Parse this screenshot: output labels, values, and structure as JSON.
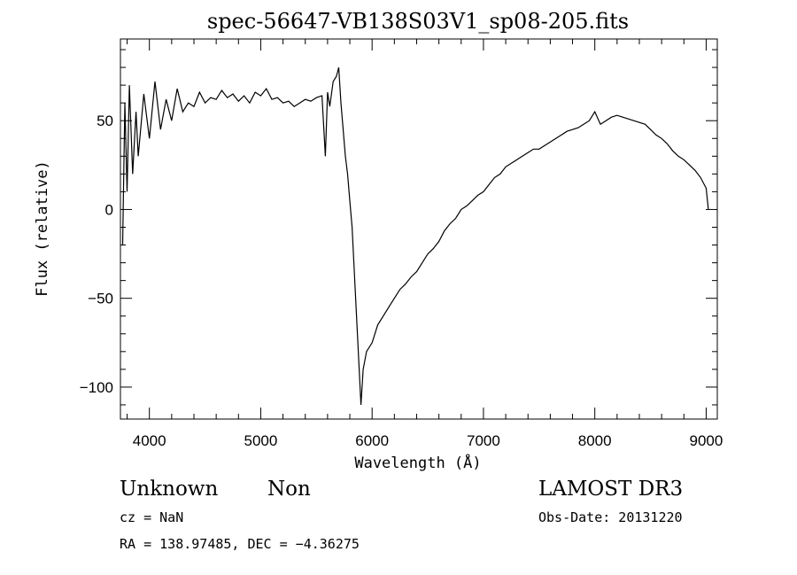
{
  "chart_data": {
    "type": "line",
    "title": "spec-56647-VB138S03V1_sp08-205.fits",
    "xlabel": "Wavelength (Å)",
    "ylabel": "Flux (relative)",
    "xlim": [
      3740,
      9100
    ],
    "ylim": [
      -118,
      96
    ],
    "x_ticks": [
      4000,
      5000,
      6000,
      7000,
      8000,
      9000
    ],
    "y_ticks": [
      -100,
      -50,
      0,
      50
    ],
    "grid": false,
    "series": [
      {
        "x": [
          3760,
          3780,
          3800,
          3820,
          3850,
          3880,
          3900,
          3950,
          4000,
          4050,
          4100,
          4150,
          4200,
          4250,
          4300,
          4350,
          4400,
          4450,
          4500,
          4550,
          4600,
          4650,
          4700,
          4750,
          4800,
          4850,
          4900,
          4950,
          5000,
          5050,
          5100,
          5150,
          5200,
          5250,
          5300,
          5350,
          5400,
          5450,
          5500,
          5550,
          5580,
          5600,
          5620,
          5650,
          5680,
          5700,
          5720,
          5740,
          5760,
          5780,
          5800,
          5820,
          5840,
          5860,
          5880,
          5900,
          5920,
          5950,
          6000,
          6050,
          6100,
          6150,
          6200,
          6250,
          6300,
          6350,
          6400,
          6450,
          6500,
          6550,
          6600,
          6650,
          6700,
          6750,
          6800,
          6850,
          6900,
          6950,
          7000,
          7050,
          7100,
          7150,
          7200,
          7250,
          7300,
          7350,
          7400,
          7450,
          7500,
          7550,
          7600,
          7650,
          7700,
          7750,
          7800,
          7850,
          7900,
          7950,
          8000,
          8050,
          8100,
          8150,
          8200,
          8250,
          8300,
          8350,
          8400,
          8450,
          8500,
          8550,
          8600,
          8650,
          8700,
          8750,
          8800,
          8850,
          8900,
          8950,
          9000,
          9020
        ],
        "y": [
          -20,
          60,
          10,
          70,
          20,
          55,
          30,
          65,
          40,
          72,
          45,
          62,
          50,
          68,
          55,
          60,
          58,
          66,
          60,
          63,
          62,
          67,
          63,
          65,
          61,
          64,
          60,
          66,
          64,
          68,
          62,
          63,
          60,
          61,
          58,
          60,
          62,
          61,
          63,
          64,
          30,
          66,
          58,
          72,
          75,
          80,
          60,
          45,
          30,
          20,
          5,
          -10,
          -35,
          -60,
          -85,
          -110,
          -90,
          -80,
          -75,
          -65,
          -60,
          -55,
          -50,
          -45,
          -42,
          -38,
          -35,
          -30,
          -25,
          -22,
          -18,
          -12,
          -8,
          -5,
          0,
          2,
          5,
          8,
          10,
          14,
          18,
          20,
          24,
          26,
          28,
          30,
          32,
          34,
          34,
          36,
          38,
          40,
          42,
          44,
          45,
          46,
          48,
          50,
          55,
          48,
          50,
          52,
          53,
          52,
          51,
          50,
          49,
          48,
          45,
          42,
          40,
          37,
          33,
          30,
          28,
          25,
          22,
          18,
          12,
          0
        ]
      }
    ]
  },
  "info": {
    "class_label": "Unknown",
    "subclass_label": "Non",
    "cz": "cz = NaN",
    "radec": "RA = 138.97485, DEC =  −4.36275",
    "survey": "LAMOST DR3",
    "obs_date": "Obs-Date: 20131220"
  }
}
